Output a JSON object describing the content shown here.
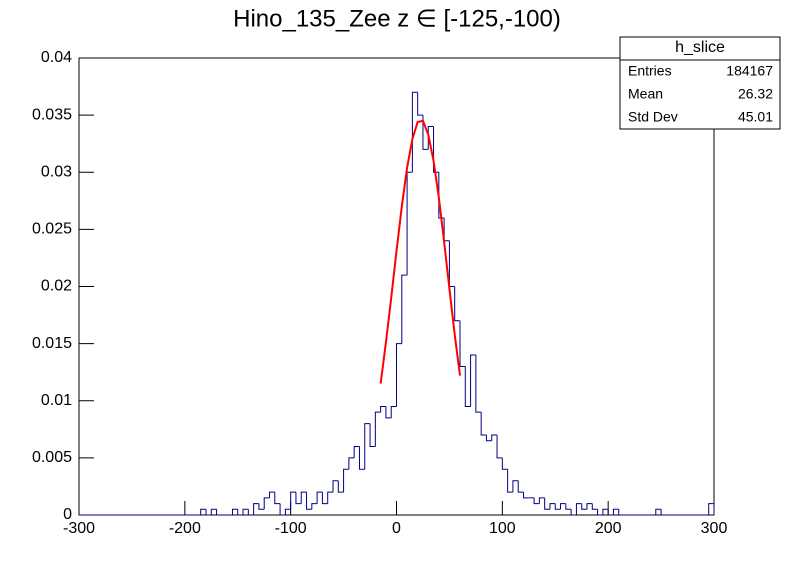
{
  "chart_data": {
    "type": "histogram",
    "title": "Hino_135_Zee z  ∈ [-125,-100)",
    "bins": [
      -300,
      -295,
      -290,
      -285,
      -280,
      -275,
      -270,
      -265,
      -260,
      -255,
      -250,
      -245,
      -240,
      -235,
      -230,
      -225,
      -220,
      -215,
      -210,
      -205,
      -200,
      -195,
      -190,
      -185,
      -180,
      -175,
      -170,
      -165,
      -160,
      -155,
      -150,
      -145,
      -140,
      -135,
      -130,
      -125,
      -120,
      -115,
      -110,
      -105,
      -100,
      -95,
      -90,
      -85,
      -80,
      -75,
      -70,
      -65,
      -60,
      -55,
      -50,
      -45,
      -40,
      -35,
      -30,
      -25,
      -20,
      -15,
      -10,
      -5,
      0,
      5,
      10,
      15,
      20,
      25,
      30,
      35,
      40,
      45,
      50,
      55,
      60,
      65,
      70,
      75,
      80,
      85,
      90,
      95,
      100,
      105,
      110,
      115,
      120,
      125,
      130,
      135,
      140,
      145,
      150,
      155,
      160,
      165,
      170,
      175,
      180,
      185,
      190,
      195,
      200,
      205,
      210,
      215,
      220,
      225,
      230,
      235,
      240,
      245,
      250,
      255,
      260,
      265,
      270,
      275,
      280,
      285,
      290,
      295,
      300
    ],
    "values": [
      0,
      0,
      0,
      0,
      0,
      0,
      0,
      0,
      0,
      0,
      0,
      0,
      0,
      0,
      0,
      0,
      0,
      0,
      0,
      0,
      0,
      0,
      0,
      0.0005,
      0,
      0.0005,
      0,
      0,
      0,
      0.0005,
      0,
      0.0005,
      0,
      0.001,
      0.0005,
      0.0015,
      0.002,
      0.001,
      0,
      0.0005,
      0.002,
      0.001,
      0.002,
      0.0005,
      0.001,
      0.002,
      0.001,
      0.002,
      0.003,
      0.002,
      0.004,
      0.005,
      0.006,
      0.004,
      0.008,
      0.006,
      0.009,
      0.0095,
      0.0085,
      0.0095,
      0.015,
      0.021,
      0.03,
      0.037,
      0.035,
      0.032,
      0.034,
      0.03,
      0.026,
      0.024,
      0.02,
      0.017,
      0.013,
      0.0095,
      0.014,
      0.009,
      0.007,
      0.0065,
      0.007,
      0.005,
      0.004,
      0.002,
      0.003,
      0.002,
      0.0015,
      0.0015,
      0.001,
      0.0015,
      0.0005,
      0.001,
      0.0005,
      0.001,
      0.0005,
      0,
      0.001,
      0.0005,
      0.001,
      0.0005,
      0,
      0.0005,
      0,
      0.0005,
      0,
      0,
      0,
      0,
      0,
      0,
      0,
      0.0005,
      0,
      0,
      0,
      0,
      0,
      0,
      0,
      0,
      0,
      0.001
    ],
    "color": "#000080",
    "fit": {
      "color": "#ff0000",
      "x": [
        -15,
        -10,
        -5,
        0,
        5,
        10,
        15,
        20,
        25,
        30,
        35,
        40,
        45,
        50,
        55,
        60
      ],
      "values": [
        0.0115,
        0.0151,
        0.019,
        0.0231,
        0.027,
        0.0304,
        0.0329,
        0.0344,
        0.0345,
        0.0333,
        0.031,
        0.0278,
        0.0239,
        0.0198,
        0.0158,
        0.0122
      ]
    },
    "xlim": [
      -300,
      300
    ],
    "xticks": [
      -300,
      -200,
      -100,
      0,
      100,
      200,
      300
    ],
    "ylim": [
      0,
      0.04
    ],
    "yticks": [
      0,
      0.005,
      0.01,
      0.015,
      0.02,
      0.025,
      0.03,
      0.035,
      0.04
    ],
    "stats": {
      "name": "h_slice",
      "rows": [
        {
          "label": "Entries",
          "value": 184167
        },
        {
          "label": "Mean",
          "value": 26.32
        },
        {
          "label": "Std Dev",
          "value": 45.01
        }
      ]
    }
  }
}
